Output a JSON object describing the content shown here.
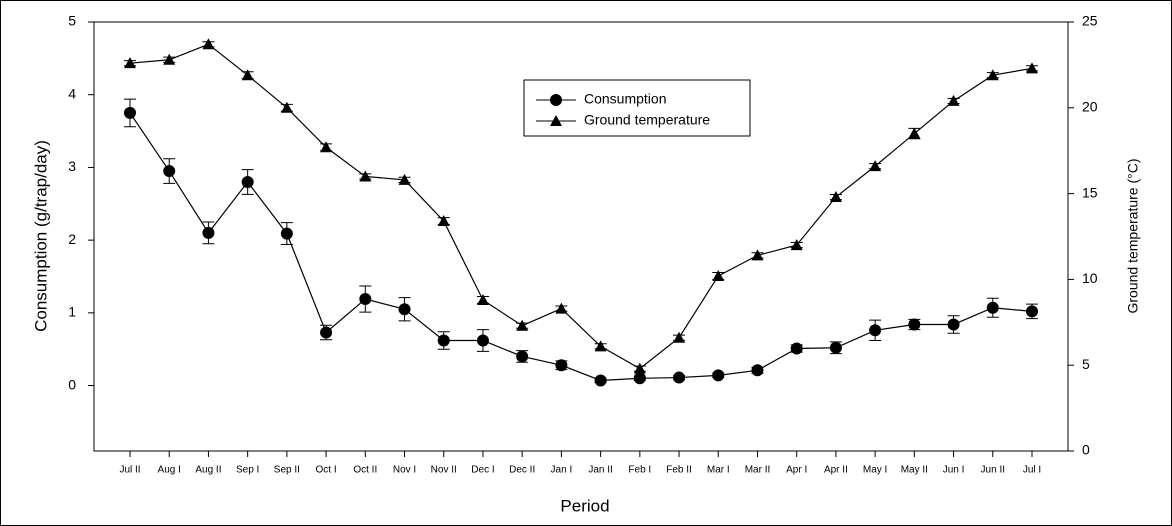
{
  "chart_data": {
    "type": "line",
    "x_label": "Period",
    "y_label": "Consumption (g/trap/day)",
    "y2_label": "Ground temperature (°C)",
    "categories": [
      "Jul II",
      "Aug I",
      "Aug II",
      "Sep I",
      "Sep II",
      "Oct I",
      "Oct II",
      "Nov I",
      "Nov II",
      "Dec I",
      "Dec II",
      "Jan I",
      "Jan II",
      "Feb I",
      "Feb II",
      "Mar I",
      "Mar II",
      "Apr I",
      "Apr II",
      "May I",
      "May II",
      "Jun I",
      "Jun II",
      "Jul I"
    ],
    "series": [
      {
        "name": "Consumption",
        "color": "#000000",
        "marker": "circle",
        "values": [
          3.75,
          2.95,
          2.1,
          2.8,
          2.09,
          0.73,
          1.19,
          1.05,
          0.62,
          0.62,
          0.4,
          0.28,
          0.07,
          0.1,
          0.11,
          0.14,
          0.21,
          0.51,
          0.52,
          0.76,
          0.84,
          0.84,
          1.07,
          1.02
        ],
        "errors": [
          0.19,
          0.17,
          0.15,
          0.17,
          0.15,
          0.1,
          0.18,
          0.16,
          0.12,
          0.15,
          0.08,
          0.06,
          0.03,
          0.03,
          0.03,
          0.03,
          0.04,
          0.05,
          0.08,
          0.14,
          0.07,
          0.12,
          0.13,
          0.1
        ]
      },
      {
        "name": "Ground temperature",
        "color": "#000000",
        "marker": "triangle",
        "axis": "y2",
        "values": [
          22.6,
          22.8,
          23.7,
          21.9,
          20.0,
          17.7,
          16.0,
          15.8,
          13.4,
          8.8,
          7.3,
          8.3,
          6.1,
          4.8,
          6.6,
          10.2,
          11.4,
          12.0,
          14.8,
          16.6,
          18.5,
          20.4,
          21.9,
          22.3
        ],
        "errors": [
          0.15,
          0.15,
          0.15,
          0.2,
          0.2,
          0.2,
          0.15,
          0.15,
          0.2,
          0.2,
          0.15,
          0.15,
          0.15,
          0.15,
          0.15,
          0.2,
          0.15,
          0.15,
          0.15,
          0.15,
          0.3,
          0.15,
          0.15,
          0.15
        ]
      }
    ],
    "ylim": [
      -0.9,
      5
    ],
    "yticks": [
      0,
      1,
      2,
      3,
      4,
      5
    ],
    "y2lim": [
      0,
      25
    ],
    "y2ticks": [
      0,
      5,
      10,
      15,
      20,
      25
    ],
    "legend": "upper center"
  }
}
